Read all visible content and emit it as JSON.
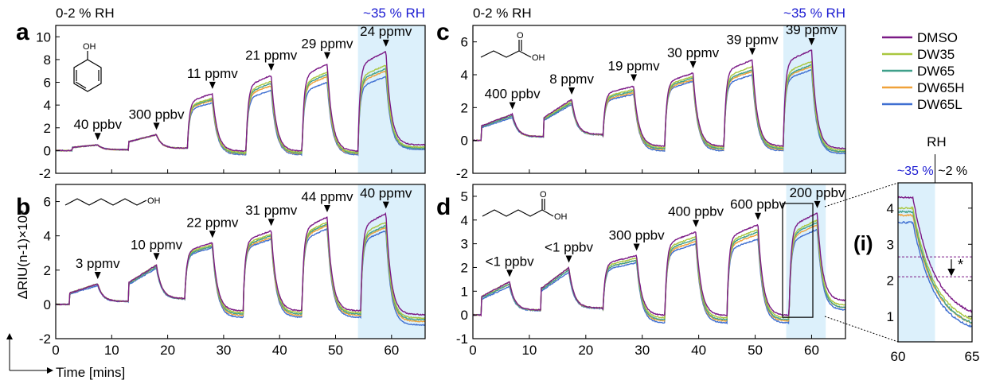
{
  "legend": {
    "entries": [
      {
        "name": "DMSO",
        "color": "#7b1a86"
      },
      {
        "name": "DW35",
        "color": "#a9c73f"
      },
      {
        "name": "DW65",
        "color": "#3fa08a"
      },
      {
        "name": "DW65H",
        "color": "#f0a23a"
      },
      {
        "name": "DW65L",
        "color": "#3f6fd1"
      }
    ]
  },
  "common": {
    "ylabel": "ΔRIU(n-1)×10⁴",
    "xlabel": "Time [mins]",
    "rh_low": "0-2 % RH",
    "rh_high": "~35 % RH"
  },
  "chart_data": [
    {
      "type": "line",
      "panel": "a",
      "molecule": "phenol",
      "xlim": [
        0,
        66
      ],
      "ylim": [
        -2,
        11
      ],
      "xticks": [],
      "yticks": [
        -2,
        0,
        2,
        4,
        6,
        8,
        10
      ],
      "shade": [
        54,
        66
      ],
      "plateaus": [
        {
          "start": 3,
          "end": 7.5,
          "values": [
            0.5,
            0.5,
            0.5,
            0.5,
            0.5
          ]
        },
        {
          "start": 13,
          "end": 18,
          "values": [
            1.4,
            1.4,
            1.4,
            1.4,
            1.4
          ]
        },
        {
          "start": 23.5,
          "end": 28,
          "values": [
            5.0,
            4.6,
            4.5,
            4.4,
            4.2
          ]
        },
        {
          "start": 34,
          "end": 38.5,
          "values": [
            6.6,
            6.1,
            5.9,
            5.7,
            5.3
          ]
        },
        {
          "start": 44,
          "end": 48.5,
          "values": [
            7.6,
            6.9,
            6.7,
            6.5,
            6.0
          ]
        },
        {
          "start": 54,
          "end": 59,
          "values": [
            8.7,
            7.5,
            7.2,
            7.0,
            6.5
          ]
        }
      ],
      "baseline_end": [
        0.5,
        0.3,
        0.2,
        0.2,
        0.1
      ],
      "annotations": [
        {
          "text": "40 ppbv",
          "x": 7.5,
          "y": 0.5
        },
        {
          "text": "300 ppbv",
          "x": 18,
          "y": 1.4
        },
        {
          "text": "11 ppmv",
          "x": 28,
          "y": 5.0
        },
        {
          "text": "21 ppmv",
          "x": 38.5,
          "y": 6.6
        },
        {
          "text": "29 ppmv",
          "x": 48.5,
          "y": 7.6
        },
        {
          "text": "24 ppmv",
          "x": 59,
          "y": 8.7
        }
      ]
    },
    {
      "type": "line",
      "panel": "b",
      "molecule": "hexanol",
      "xlim": [
        0,
        66
      ],
      "ylim": [
        -2,
        7
      ],
      "xticks": [
        0,
        10,
        20,
        30,
        40,
        50,
        60
      ],
      "yticks": [
        -2,
        0,
        2,
        4,
        6
      ],
      "shade": [
        54,
        66
      ],
      "plateaus": [
        {
          "start": 2.5,
          "end": 7.5,
          "values": [
            1.2,
            1.2,
            1.2,
            1.2,
            1.1
          ]
        },
        {
          "start": 13,
          "end": 18,
          "values": [
            2.3,
            2.3,
            2.2,
            2.2,
            2.1
          ]
        },
        {
          "start": 23,
          "end": 28,
          "values": [
            3.6,
            3.5,
            3.4,
            3.4,
            3.3
          ]
        },
        {
          "start": 33.5,
          "end": 38.5,
          "values": [
            4.3,
            4.1,
            4.0,
            3.9,
            3.8
          ]
        },
        {
          "start": 44,
          "end": 48.5,
          "values": [
            5.1,
            4.8,
            4.7,
            4.6,
            4.4
          ]
        },
        {
          "start": 54.5,
          "end": 59,
          "values": [
            5.3,
            4.8,
            4.6,
            4.5,
            4.3
          ]
        }
      ],
      "baseline_end": [
        -0.6,
        -0.8,
        -0.9,
        -1.0,
        -1.2
      ],
      "annotations": [
        {
          "text": "3 ppmv",
          "x": 7.5,
          "y": 1.2
        },
        {
          "text": "10 ppmv",
          "x": 18,
          "y": 2.3
        },
        {
          "text": "22 ppmv",
          "x": 28,
          "y": 3.6
        },
        {
          "text": "31 ppmv",
          "x": 38.5,
          "y": 4.3
        },
        {
          "text": "44 ppmv",
          "x": 48.5,
          "y": 5.1
        },
        {
          "text": "40 ppmv",
          "x": 59,
          "y": 5.3
        }
      ]
    },
    {
      "type": "line",
      "panel": "c",
      "molecule": "butyric acid",
      "xlim": [
        0,
        66
      ],
      "ylim": [
        -2,
        7
      ],
      "xticks": [],
      "yticks": [
        -2,
        0,
        2,
        4,
        6
      ],
      "shade": [
        55,
        66
      ],
      "plateaus": [
        {
          "start": 1.5,
          "end": 7,
          "values": [
            1.6,
            1.6,
            1.5,
            1.5,
            1.4
          ]
        },
        {
          "start": 12.5,
          "end": 17.5,
          "values": [
            2.5,
            2.4,
            2.3,
            2.3,
            2.2
          ]
        },
        {
          "start": 23,
          "end": 28.5,
          "values": [
            3.3,
            3.1,
            3.0,
            2.9,
            2.8
          ]
        },
        {
          "start": 34,
          "end": 39,
          "values": [
            4.1,
            3.9,
            3.8,
            3.7,
            3.6
          ]
        },
        {
          "start": 44.5,
          "end": 49.5,
          "values": [
            4.9,
            4.5,
            4.3,
            4.2,
            4.0
          ]
        },
        {
          "start": 55,
          "end": 60,
          "values": [
            5.5,
            4.8,
            4.6,
            4.5,
            4.3
          ]
        }
      ],
      "baseline_end": [
        -0.5,
        -0.6,
        -0.7,
        -0.7,
        -0.8
      ],
      "annotations": [
        {
          "text": "400 ppbv",
          "x": 7,
          "y": 1.6
        },
        {
          "text": "8 ppmv",
          "x": 17.5,
          "y": 2.5
        },
        {
          "text": "19 ppmv",
          "x": 28.5,
          "y": 3.3
        },
        {
          "text": "30 ppmv",
          "x": 39,
          "y": 4.1
        },
        {
          "text": "39 ppmv",
          "x": 49.5,
          "y": 4.9
        },
        {
          "text": "39 ppmv",
          "x": 60,
          "y": 5.5
        }
      ]
    },
    {
      "type": "line",
      "panel": "d",
      "molecule": "hexanoic acid",
      "xlim": [
        0,
        66
      ],
      "ylim": [
        -1,
        5.5
      ],
      "xticks": [
        0,
        10,
        20,
        30,
        40,
        50,
        60
      ],
      "yticks": [
        -1,
        0,
        1,
        2,
        3,
        4,
        5
      ],
      "shade": [
        55.5,
        62.5
      ],
      "plateaus": [
        {
          "start": 1.5,
          "end": 6.5,
          "values": [
            1.4,
            1.4,
            1.3,
            1.3,
            1.2
          ]
        },
        {
          "start": 12,
          "end": 17,
          "values": [
            2.0,
            2.0,
            1.9,
            1.9,
            1.8
          ]
        },
        {
          "start": 23,
          "end": 29,
          "values": [
            2.5,
            2.4,
            2.3,
            2.3,
            2.2
          ]
        },
        {
          "start": 34,
          "end": 39.5,
          "values": [
            3.5,
            3.3,
            3.2,
            3.1,
            3.0
          ]
        },
        {
          "start": 45,
          "end": 50.5,
          "values": [
            3.8,
            3.6,
            3.5,
            3.4,
            3.2
          ]
        },
        {
          "start": 56,
          "end": 61,
          "values": [
            4.3,
            4.0,
            3.9,
            3.8,
            3.6
          ]
        }
      ],
      "baseline_end": [
        0.6,
        0.4,
        0.3,
        0.3,
        0.2
      ],
      "annotations": [
        {
          "text": "<1 ppbv",
          "x": 6.5,
          "y": 1.4
        },
        {
          "text": "<1 ppbv",
          "x": 17,
          "y": 2.0
        },
        {
          "text": "300 ppbv",
          "x": 29,
          "y": 2.5
        },
        {
          "text": "400 ppbv",
          "x": 39.5,
          "y": 3.5
        },
        {
          "text": "600 ppbv",
          "x": 50.5,
          "y": 3.8
        },
        {
          "text": "200 ppbv",
          "x": 61,
          "y": 4.3
        }
      ]
    },
    {
      "type": "line",
      "panel": "i",
      "title": "RH",
      "label": "(i)",
      "xlim": [
        60,
        65
      ],
      "ylim": [
        0.3,
        4.7
      ],
      "xticks": [
        60,
        65
      ],
      "yticks": [
        1,
        2,
        3,
        4
      ],
      "shade": [
        60,
        62.5
      ],
      "rh_left": "~35 %",
      "rh_right": "~2 %",
      "marker": "*",
      "thresholds": [
        2.65,
        2.1
      ],
      "series_start": [
        4.3,
        4.0,
        3.9,
        3.8,
        3.6
      ],
      "series_end": [
        0.9,
        0.7,
        0.6,
        0.6,
        0.5
      ]
    }
  ]
}
